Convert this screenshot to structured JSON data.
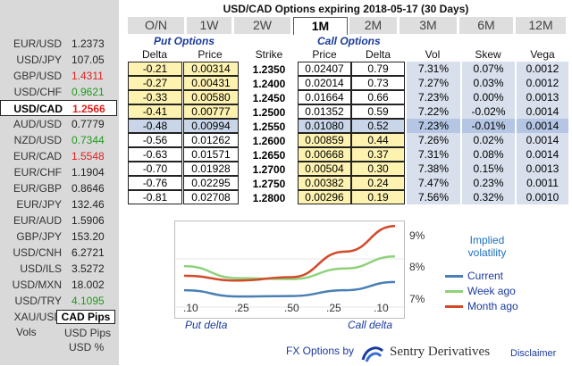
{
  "pairs": [
    {
      "name": "EUR/USD",
      "value": "1.2373",
      "color": "#222"
    },
    {
      "name": "USD/JPY",
      "value": "107.05",
      "color": "#222"
    },
    {
      "name": "GBP/USD",
      "value": "1.4311",
      "color": "#e02020"
    },
    {
      "name": "USD/CHF",
      "value": "0.9621",
      "color": "#1f9a1f"
    },
    {
      "name": "USD/CAD",
      "value": "1.2566",
      "color": "#e02020",
      "selected": true
    },
    {
      "name": "AUD/USD",
      "value": "0.7779",
      "color": "#222"
    },
    {
      "name": "NZD/USD",
      "value": "0.7344",
      "color": "#1f9a1f"
    },
    {
      "name": "EUR/CAD",
      "value": "1.5548",
      "color": "#e02020"
    },
    {
      "name": "EUR/CHF",
      "value": "1.1904",
      "color": "#222"
    },
    {
      "name": "EUR/GBP",
      "value": "0.8646",
      "color": "#222"
    },
    {
      "name": "EUR/JPY",
      "value": "132.46",
      "color": "#222"
    },
    {
      "name": "EUR/AUD",
      "value": "1.5906",
      "color": "#222"
    },
    {
      "name": "GBP/JPY",
      "value": "153.20",
      "color": "#222"
    },
    {
      "name": "USD/CNH",
      "value": "6.2721",
      "color": "#222"
    },
    {
      "name": "USD/ILS",
      "value": "3.5272",
      "color": "#222"
    },
    {
      "name": "USD/MXN",
      "value": "18.002",
      "color": "#222"
    },
    {
      "name": "USD/TRY",
      "value": "4.1095",
      "color": "#1f9a1f"
    },
    {
      "name": "XAU/USD",
      "value": "1343.0",
      "color": "#e02020"
    }
  ],
  "sidebar": {
    "cad_pips": "CAD Pips",
    "vols": "Vols",
    "usd_pips": "USD Pips",
    "usd_pct": "USD %"
  },
  "title": "USD/CAD Options expiring 2018-05-17 (30 Days)",
  "tabs": [
    "O/N",
    "1W",
    "2W",
    "1M",
    "2M",
    "3M",
    "6M",
    "12M"
  ],
  "active_tab": "1M",
  "subheaders": {
    "put": "Put Options",
    "call": "Call Options"
  },
  "columns": {
    "delta": "Delta",
    "price": "Price",
    "strike": "Strike",
    "vol": "Vol",
    "skew": "Skew",
    "vega": "Vega"
  },
  "rows": [
    {
      "pdelta": "-0.21",
      "pprice": "0.00314",
      "strike": "1.2350",
      "cprice": "0.02407",
      "cdelta": "0.79",
      "vol": "7.31%",
      "skew": "0.07%",
      "vega": "0.0012"
    },
    {
      "pdelta": "-0.27",
      "pprice": "0.00431",
      "strike": "1.2400",
      "cprice": "0.02014",
      "cdelta": "0.73",
      "vol": "7.27%",
      "skew": "0.03%",
      "vega": "0.0012"
    },
    {
      "pdelta": "-0.33",
      "pprice": "0.00580",
      "strike": "1.2450",
      "cprice": "0.01664",
      "cdelta": "0.66",
      "vol": "7.23%",
      "skew": "0.00%",
      "vega": "0.0013"
    },
    {
      "pdelta": "-0.41",
      "pprice": "0.00777",
      "strike": "1.2500",
      "cprice": "0.01352",
      "cdelta": "0.59",
      "vol": "7.22%",
      "skew": "-0.02%",
      "vega": "0.0014"
    },
    {
      "pdelta": "-0.48",
      "pprice": "0.00994",
      "strike": "1.2550",
      "cprice": "0.01080",
      "cdelta": "0.52",
      "vol": "7.23%",
      "skew": "-0.01%",
      "vega": "0.0014"
    },
    {
      "pdelta": "-0.56",
      "pprice": "0.01262",
      "strike": "1.2600",
      "cprice": "0.00859",
      "cdelta": "0.44",
      "vol": "7.26%",
      "skew": "0.02%",
      "vega": "0.0014"
    },
    {
      "pdelta": "-0.63",
      "pprice": "0.01571",
      "strike": "1.2650",
      "cprice": "0.00668",
      "cdelta": "0.37",
      "vol": "7.31%",
      "skew": "0.08%",
      "vega": "0.0014"
    },
    {
      "pdelta": "-0.70",
      "pprice": "0.01928",
      "strike": "1.2700",
      "cprice": "0.00504",
      "cdelta": "0.30",
      "vol": "7.38%",
      "skew": "0.15%",
      "vega": "0.0013"
    },
    {
      "pdelta": "-0.76",
      "pprice": "0.02295",
      "strike": "1.2750",
      "cprice": "0.00382",
      "cdelta": "0.24",
      "vol": "7.47%",
      "skew": "0.23%",
      "vega": "0.0011"
    },
    {
      "pdelta": "-0.81",
      "pprice": "0.02708",
      "strike": "1.2800",
      "cprice": "0.00296",
      "cdelta": "0.19",
      "vol": "7.56%",
      "skew": "0.32%",
      "vega": "0.0010"
    }
  ],
  "chart_data": {
    "type": "line",
    "x": [
      -0.1,
      -0.25,
      0.5,
      0.25,
      0.1
    ],
    "xticks": [
      ".10",
      ".25",
      ".50",
      ".25",
      ".10"
    ],
    "xlabel_left": "Put delta",
    "xlabel_right": "Call delta",
    "yticks": [
      "9%",
      "8%",
      "7%"
    ],
    "ylim": [
      7,
      9
    ],
    "legend_title": "Implied\nvolatility",
    "series": [
      {
        "name": "Current",
        "color": "#4a7fb5",
        "values": [
          7.35,
          7.22,
          7.23,
          7.35,
          7.52
        ]
      },
      {
        "name": "Week ago",
        "color": "#8fd17a",
        "values": [
          7.85,
          7.6,
          7.58,
          7.8,
          8.05
        ]
      },
      {
        "name": "Month ago",
        "color": "#d24a2a",
        "values": [
          7.65,
          7.55,
          7.62,
          8.15,
          8.68
        ]
      }
    ]
  },
  "footer": {
    "prefix": "FX Options by",
    "brand": "Sentry Derivatives",
    "disclaimer": "Disclaimer"
  }
}
